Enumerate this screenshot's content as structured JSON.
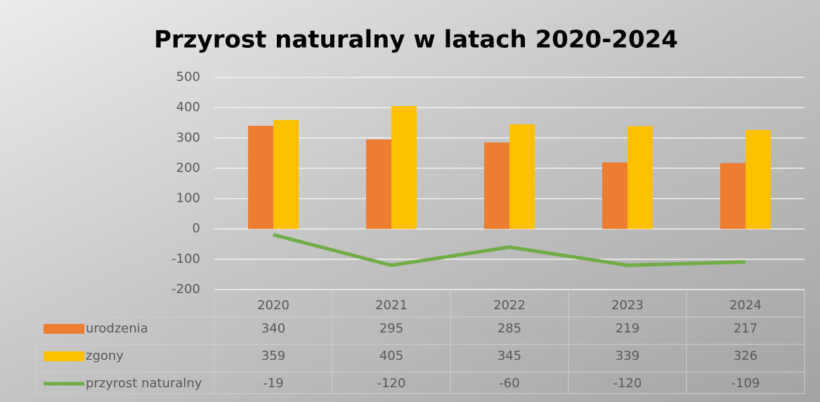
{
  "chart_data": {
    "type": "bar",
    "title": "Przyrost naturalny w latach 2020-2024",
    "categories": [
      "2020",
      "2021",
      "2022",
      "2023",
      "2024"
    ],
    "series": [
      {
        "name": "urodzenia",
        "type": "bar",
        "color": "#ed7d31",
        "values": [
          340,
          295,
          285,
          219,
          217
        ]
      },
      {
        "name": "zgony",
        "type": "bar",
        "color": "#ffc000",
        "values": [
          359,
          405,
          345,
          339,
          326
        ]
      },
      {
        "name": "przyrost naturalny",
        "type": "line",
        "color": "#70ad47",
        "values": [
          -19,
          -120,
          -60,
          -120,
          -109
        ]
      }
    ],
    "ylim": [
      -200,
      500
    ],
    "yticks": [
      -200,
      -100,
      0,
      100,
      200,
      300,
      400,
      500
    ],
    "grid": true,
    "data_table": true
  }
}
